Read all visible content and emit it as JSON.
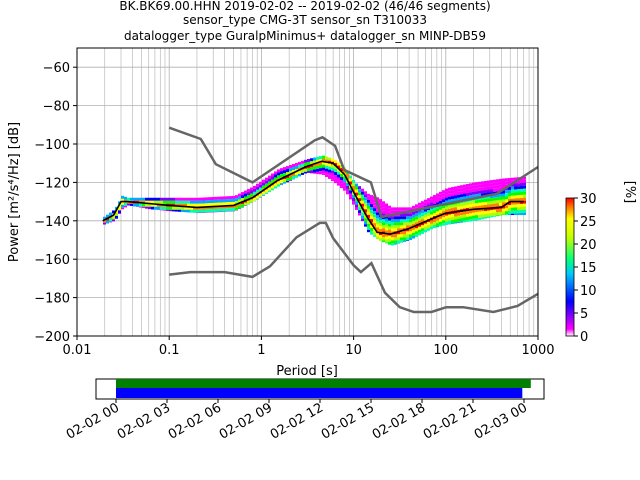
{
  "title_lines": [
    "BK.BK69.00.HHN   2019-02-02 -- 2019-02-02  (46/46 segments)",
    "sensor_type CMG-3T sensor_sn T310033",
    "datalogger_type GuralpMinimus+ datalogger_sn MINP-DB59"
  ],
  "colors": {
    "grid": "#b0b0b0",
    "model_curve": "#666666",
    "mean_curve": "#000000",
    "coverage_all": "#008000",
    "coverage_used": "#0000ff"
  },
  "chart_data": [
    {
      "type": "heatmap",
      "xlabel": "Period [s]",
      "ylabel": "Power [m²/s⁴/Hz] [dB]",
      "xscale": "log",
      "xlim": [
        0.01,
        1000
      ],
      "ylim": [
        -200,
        -50
      ],
      "x_ticks": [
        0.01,
        0.1,
        1,
        10,
        100,
        1000
      ],
      "x_tick_labels": [
        "0.01",
        "0.1",
        "1",
        "10",
        "100",
        "1000"
      ],
      "y_ticks": [
        -200,
        -180,
        -160,
        -140,
        -120,
        -100,
        -80,
        -60
      ],
      "y_tick_labels": [
        "−200",
        "−180",
        "−160",
        "−140",
        "−120",
        "−100",
        "−80",
        "−60"
      ],
      "grid": true,
      "colorbar": {
        "label": "[%]",
        "range": [
          0,
          30
        ],
        "ticks": [
          0,
          5,
          10,
          15,
          20,
          25,
          30
        ],
        "tick_labels": [
          "0",
          "5",
          "10",
          "15",
          "20",
          "25",
          "30"
        ]
      },
      "psd_band": {
        "period": [
          0.019,
          0.025,
          0.03,
          0.035,
          0.06,
          0.1,
          0.2,
          0.5,
          0.8,
          1.5,
          3,
          4.5,
          6,
          8,
          10,
          14,
          18,
          25,
          40,
          70,
          100,
          200,
          400,
          700
        ],
        "lower_db": [
          -142,
          -140,
          -134,
          -132,
          -134,
          -135,
          -136,
          -135,
          -130,
          -122,
          -115,
          -116,
          -120,
          -125,
          -133,
          -146,
          -150,
          -153,
          -150,
          -144,
          -142,
          -140,
          -137,
          -137
        ],
        "upper_db": [
          -138,
          -134,
          -127,
          -128,
          -128,
          -128,
          -128,
          -127,
          -122,
          -113,
          -108,
          -106,
          -108,
          -113,
          -120,
          -126,
          -128,
          -133,
          -133,
          -127,
          -123,
          -120,
          -118,
          -117
        ]
      },
      "mean_curve": {
        "period": [
          0.019,
          0.025,
          0.03,
          0.035,
          0.06,
          0.1,
          0.2,
          0.5,
          0.8,
          1.5,
          3,
          4.5,
          6,
          8,
          10,
          14,
          18,
          25,
          40,
          70,
          100,
          200,
          400,
          500,
          700
        ],
        "db": [
          -140,
          -137,
          -130,
          -130,
          -131,
          -132,
          -133,
          -132,
          -128,
          -119,
          -112,
          -109,
          -110,
          -116,
          -125,
          -138,
          -146,
          -147,
          -144,
          -139,
          -136,
          -134,
          -133,
          -130,
          -130
        ]
      },
      "noise_model_high": {
        "period": [
          0.1,
          0.22,
          0.32,
          0.8,
          3.8,
          4.6,
          6.3,
          7.9,
          15.4,
          20,
          354.8,
          1000
        ],
        "db": [
          -91.5,
          -97.4,
          -110.5,
          -120,
          -98,
          -96.5,
          -101,
          -113.5,
          -120,
          -138,
          -126,
          -112
        ]
      },
      "noise_model_low": {
        "period": [
          0.1,
          0.17,
          0.4,
          0.8,
          1.24,
          2.4,
          4.3,
          5,
          6,
          10,
          12,
          15.6,
          21.9,
          31.6,
          45,
          70,
          101,
          154,
          328,
          600,
          1000
        ],
        "db": [
          -168,
          -166.7,
          -166.7,
          -169.2,
          -163.7,
          -148.6,
          -141.1,
          -141.1,
          -149,
          -163.2,
          -166.7,
          -162.1,
          -177.5,
          -185,
          -187.5,
          -187.5,
          -185,
          -185,
          -187.5,
          -184.4,
          -178
        ]
      }
    },
    {
      "type": "bar",
      "orientation": "horizontal",
      "time_range": [
        "2019-02-02 00:00",
        "2019-02-03 00:45"
      ],
      "x_tick_labels": [
        "02-02 00",
        "02-02 03",
        "02-02 06",
        "02-02 09",
        "02-02 12",
        "02-02 15",
        "02-02 18",
        "02-02 21",
        "02-03 00"
      ],
      "x_tick_hours": [
        0,
        3,
        6,
        9,
        12,
        15,
        18,
        21,
        24
      ],
      "series": [
        {
          "start_hour": 0,
          "end_hour": 24.4
        },
        {
          "start_hour": 0,
          "end_hour": 23.9
        }
      ]
    }
  ]
}
